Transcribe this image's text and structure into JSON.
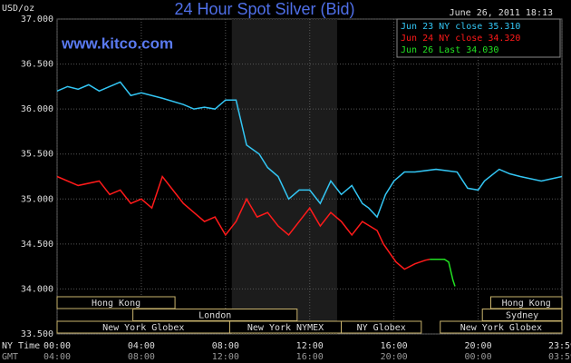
{
  "chart_data": {
    "type": "line",
    "title": "24 Hour Spot Silver (Bid)",
    "timestamp": "June 26, 2011 18:13",
    "watermark": "www.kitco.com",
    "y_label": "USD/oz",
    "x_label": "NY Time",
    "x2_label": "GMT",
    "xlim": [
      0,
      23.98
    ],
    "ylim": [
      33.5,
      37
    ],
    "xticks": [
      {
        "value": 0,
        "label": "00:00"
      },
      {
        "value": 4,
        "label": "04:00"
      },
      {
        "value": 8,
        "label": "08:00"
      },
      {
        "value": 12,
        "label": "12:00"
      },
      {
        "value": 16,
        "label": "16:00"
      },
      {
        "value": 20,
        "label": "20:00"
      },
      {
        "value": 23.98,
        "label": "23:59"
      }
    ],
    "x2ticks": [
      {
        "value": 0,
        "label": "04:00"
      },
      {
        "value": 4,
        "label": "08:00"
      },
      {
        "value": 8,
        "label": "12:00"
      },
      {
        "value": 12,
        "label": "16:00"
      },
      {
        "value": 16,
        "label": "20:00"
      },
      {
        "value": 20,
        "label": "00:00"
      },
      {
        "value": 23.98,
        "label": "03:59"
      }
    ],
    "yticks": [
      {
        "value": 33.5,
        "label": "33.500"
      },
      {
        "value": 34,
        "label": "34.000"
      },
      {
        "value": 34.5,
        "label": "34.500"
      },
      {
        "value": 35,
        "label": "35.000"
      },
      {
        "value": 35.5,
        "label": "35.500"
      },
      {
        "value": 36,
        "label": "36.000"
      },
      {
        "value": 36.5,
        "label": "36.500"
      },
      {
        "value": 37,
        "label": "37.000"
      }
    ],
    "grid": true,
    "shaded_range": [
      8.3,
      13.3
    ],
    "legend": "top-right",
    "series": [
      {
        "name": "Jun 23 NY close 35.310",
        "color": "#33c6f4",
        "x": [
          0,
          0.5,
          1,
          1.5,
          2,
          2.5,
          3,
          3.5,
          4,
          5,
          6,
          6.5,
          7,
          7.5,
          8,
          8.5,
          9,
          9.6,
          10,
          10.5,
          11,
          11.5,
          12,
          12.5,
          13,
          13.5,
          14,
          14.5,
          14.8,
          15.2,
          15.6,
          16,
          16.5,
          17,
          18,
          19,
          19.5,
          20,
          20.3,
          21,
          21.5,
          22,
          23,
          23.98
        ],
        "values": [
          36.2,
          36.25,
          36.22,
          36.27,
          36.2,
          36.25,
          36.3,
          36.15,
          36.18,
          36.12,
          36.05,
          36.0,
          36.02,
          36.0,
          36.1,
          36.1,
          35.6,
          35.5,
          35.35,
          35.25,
          35.0,
          35.1,
          35.1,
          34.95,
          35.2,
          35.05,
          35.15,
          34.95,
          34.9,
          34.8,
          35.05,
          35.2,
          35.3,
          35.3,
          35.33,
          35.3,
          35.12,
          35.1,
          35.2,
          35.33,
          35.28,
          35.25,
          35.2,
          35.25
        ]
      },
      {
        "name": "Jun 24 NY close 34.320",
        "color": "#ff1a1a",
        "x": [
          0,
          1,
          2,
          2.5,
          3,
          3.5,
          4,
          4.5,
          5,
          5.5,
          6,
          6.5,
          7,
          7.5,
          8,
          8.5,
          9,
          9.5,
          10,
          10.5,
          11,
          11.5,
          12,
          12.5,
          13,
          13.5,
          14,
          14.5,
          15.2,
          15.5,
          15.8,
          16.1,
          16.5,
          17,
          17.5,
          17.7
        ],
        "values": [
          35.25,
          35.15,
          35.2,
          35.05,
          35.1,
          34.95,
          35.0,
          34.9,
          35.25,
          35.1,
          34.95,
          34.85,
          34.75,
          34.8,
          34.6,
          34.75,
          35.0,
          34.8,
          34.85,
          34.7,
          34.6,
          34.75,
          34.9,
          34.7,
          34.85,
          34.75,
          34.6,
          34.75,
          34.65,
          34.5,
          34.4,
          34.3,
          34.22,
          34.28,
          34.32,
          34.33
        ]
      },
      {
        "name": "Jun 26 Last 34.030",
        "color": "#22e022",
        "x": [
          17.7,
          18.4,
          18.6,
          18.8,
          18.9
        ],
        "values": [
          34.33,
          34.33,
          34.3,
          34.1,
          34.03
        ]
      }
    ],
    "sessions": [
      [
        {
          "label": "Hong Kong",
          "start": 0,
          "end": 5.6
        },
        {
          "label": "Hong Kong",
          "start": 20.6,
          "end": 23.98
        }
      ],
      [
        {
          "label": "London",
          "start": 3.6,
          "end": 11.4
        },
        {
          "label": "Sydney",
          "start": 20.2,
          "end": 23.98
        }
      ],
      [
        {
          "label": "New York Globex",
          "start": 0,
          "end": 8.2
        },
        {
          "label": "New York NYMEX",
          "start": 8.2,
          "end": 13.5
        },
        {
          "label": "NY Globex",
          "start": 13.5,
          "end": 17.3
        },
        {
          "label": "New York Globex",
          "start": 18.2,
          "end": 23.98
        }
      ]
    ]
  }
}
